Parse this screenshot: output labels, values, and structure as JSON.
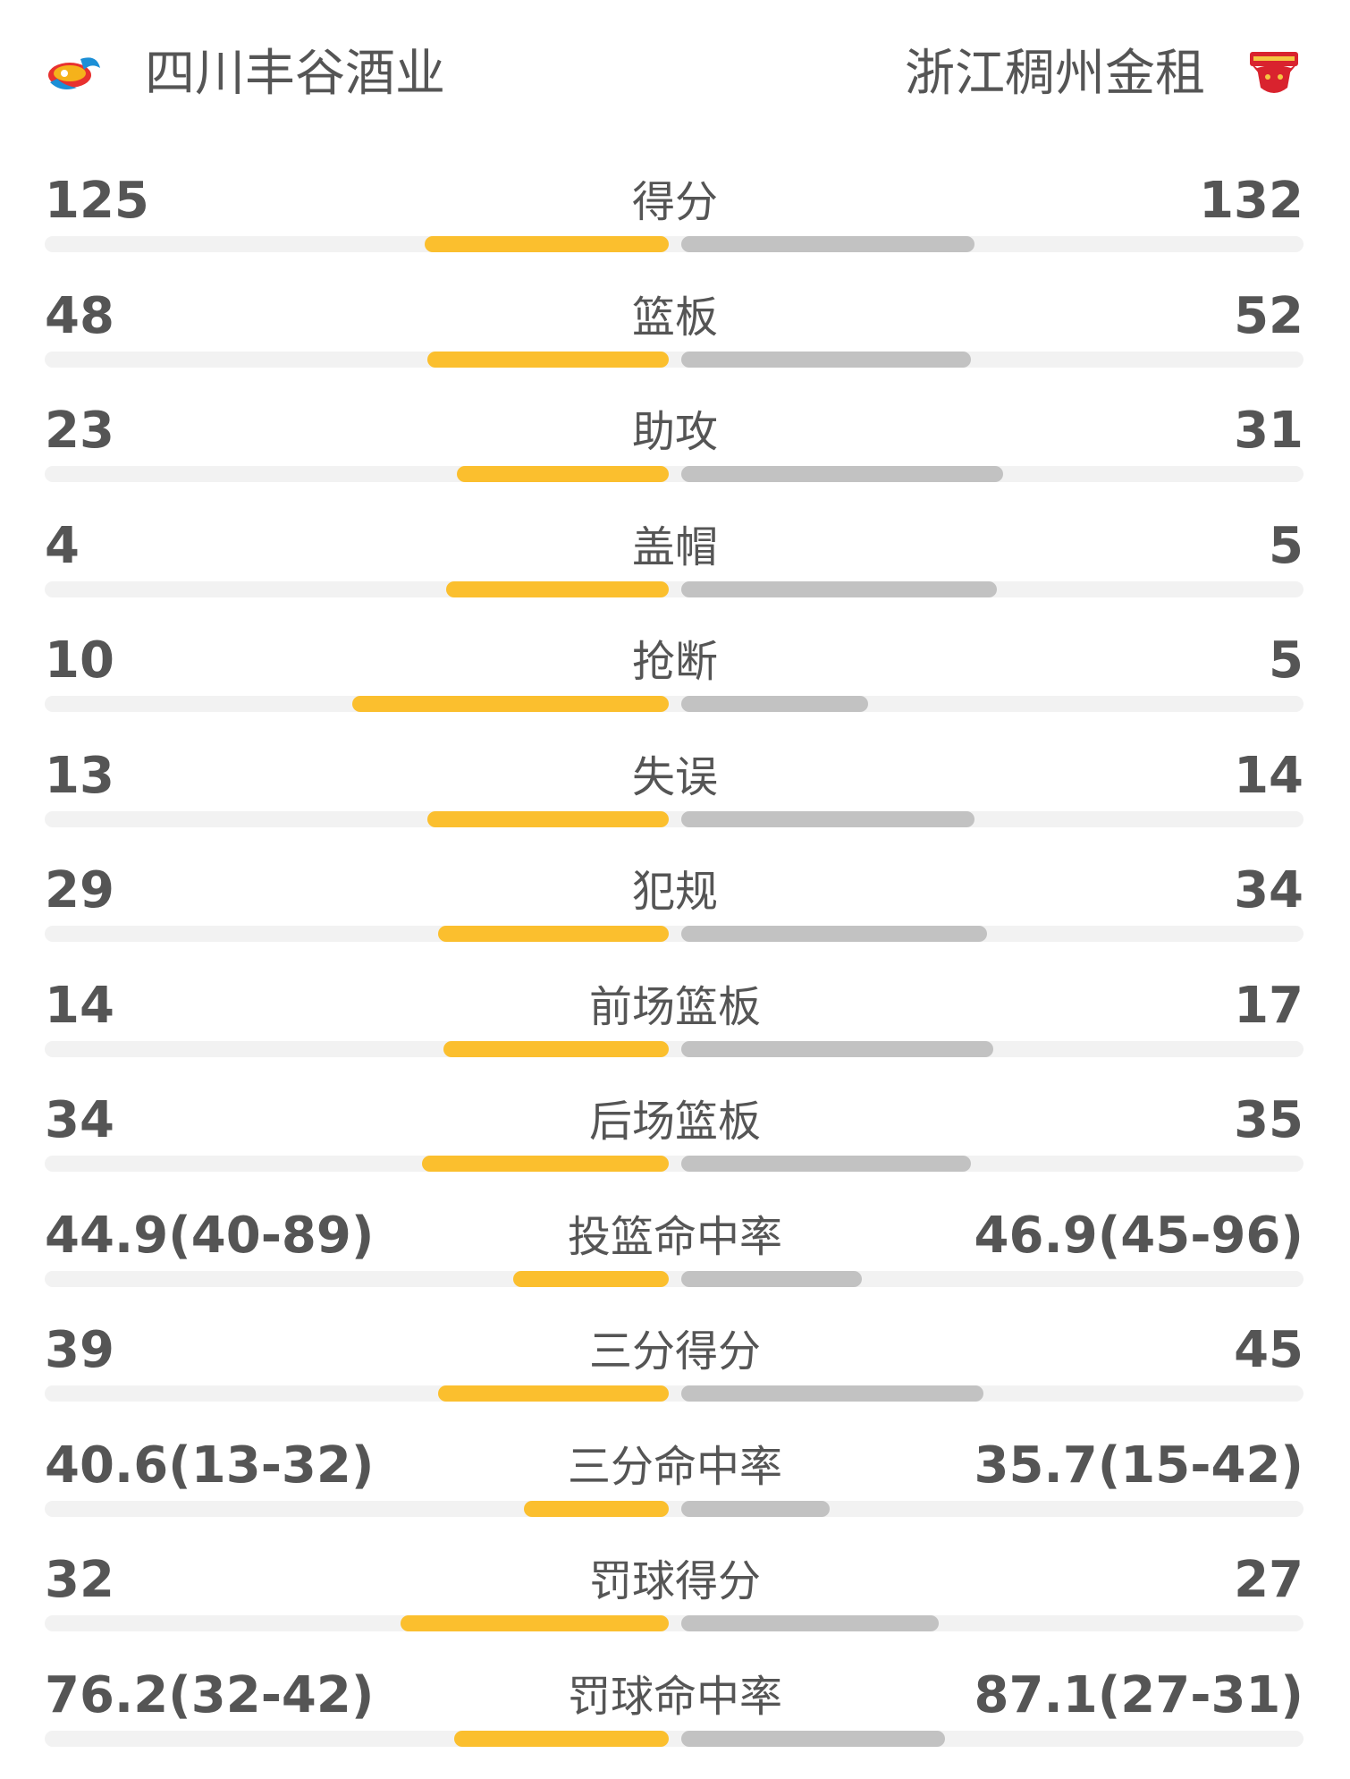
{
  "colors": {
    "home_bar": "#fbbf2e",
    "away_bar": "#c2c2c2",
    "track": "#f2f2f2",
    "text": "#555555"
  },
  "header": {
    "home_team": "四川丰谷酒业",
    "away_team": "浙江稠州金租",
    "home_logo_icon": "sichuan-team-logo-icon",
    "away_logo_icon": "golden-bulls-logo-icon"
  },
  "stats": [
    {
      "label": "得分",
      "home": "125",
      "away": "132",
      "home_bar": 0.91,
      "away_bar": 0.91
    },
    {
      "label": "篮板",
      "home": "48",
      "away": "52",
      "home_bar": 0.9,
      "away_bar": 0.9
    },
    {
      "label": "助攻",
      "home": "23",
      "away": "31",
      "home_bar": 0.79,
      "away_bar": 1.0
    },
    {
      "label": "盖帽",
      "home": "4",
      "away": "5",
      "home_bar": 0.83,
      "away_bar": 0.98
    },
    {
      "label": "抢断",
      "home": "10",
      "away": "5",
      "home_bar": 1.18,
      "away_bar": 0.58
    },
    {
      "label": "失误",
      "home": "13",
      "away": "14",
      "home_bar": 0.9,
      "away_bar": 0.91
    },
    {
      "label": "犯规",
      "home": "29",
      "away": "34",
      "home_bar": 0.86,
      "away_bar": 0.95
    },
    {
      "label": "前场篮板",
      "home": "14",
      "away": "17",
      "home_bar": 0.84,
      "away_bar": 0.97
    },
    {
      "label": "后场篮板",
      "home": "34",
      "away": "35",
      "home_bar": 0.92,
      "away_bar": 0.9
    },
    {
      "label": "投篮命中率",
      "home": "44.9(40-89)",
      "away": "46.9(45-96)",
      "home_bar": 0.58,
      "away_bar": 0.56
    },
    {
      "label": "三分得分",
      "home": "39",
      "away": "45",
      "home_bar": 0.86,
      "away_bar": 0.94
    },
    {
      "label": "三分命中率",
      "home": "40.6(13-32)",
      "away": "35.7(15-42)",
      "home_bar": 0.54,
      "away_bar": 0.46
    },
    {
      "label": "罚球得分",
      "home": "32",
      "away": "27",
      "home_bar": 1.0,
      "away_bar": 0.8
    },
    {
      "label": "罚球命中率",
      "home": "76.2(32-42)",
      "away": "87.1(27-31)",
      "home_bar": 0.8,
      "away_bar": 0.82
    }
  ]
}
